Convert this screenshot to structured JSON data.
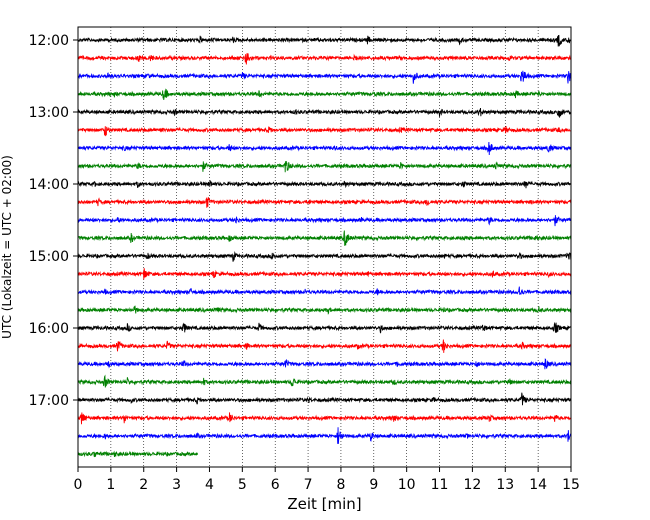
{
  "chart_data": {
    "type": "line",
    "title": "",
    "xlabel": "Zeit  [min]",
    "ylabel": "UTC (Lokalzeit = UTC + 02:00)",
    "xlim": [
      0,
      15
    ],
    "x_ticks": [
      0,
      1,
      2,
      3,
      4,
      5,
      6,
      7,
      8,
      9,
      10,
      11,
      12,
      13,
      14,
      15
    ],
    "y_tick_labels": [
      "12:00",
      "13:00",
      "14:00",
      "15:00",
      "16:00",
      "17:00"
    ],
    "grid": "vertical dotted",
    "trace_interval_min": 15,
    "trace_colors": [
      "#000000",
      "#ff0000",
      "#0000ff",
      "#008000"
    ],
    "traces": [
      {
        "start": "12:00",
        "end_min": 15,
        "color": "#000000",
        "events": [
          [
            3.7,
            5
          ],
          [
            4.7,
            4
          ],
          [
            8.8,
            5
          ],
          [
            11.6,
            5
          ],
          [
            14.6,
            9
          ],
          [
            14.9,
            6
          ]
        ]
      },
      {
        "start": "12:15",
        "end_min": 15,
        "color": "#ff0000",
        "events": [
          [
            1.8,
            7
          ],
          [
            2.2,
            5
          ],
          [
            5.1,
            11
          ],
          [
            8.4,
            5
          ],
          [
            13.1,
            4
          ],
          [
            14.9,
            5
          ]
        ]
      },
      {
        "start": "12:30",
        "end_min": 15,
        "color": "#0000ff",
        "events": [
          [
            0.9,
            5
          ],
          [
            2.1,
            4
          ],
          [
            5.0,
            5
          ],
          [
            10.2,
            8
          ],
          [
            13.5,
            11
          ],
          [
            14.9,
            9
          ]
        ]
      },
      {
        "start": "12:45",
        "end_min": 15,
        "color": "#008000",
        "events": [
          [
            1.1,
            4
          ],
          [
            2.6,
            9
          ],
          [
            5.5,
            5
          ],
          [
            9.0,
            4
          ],
          [
            13.3,
            5
          ],
          [
            14.0,
            4
          ]
        ]
      },
      {
        "start": "13:00",
        "end_min": 15,
        "color": "#000000",
        "events": [
          [
            2.9,
            5
          ],
          [
            6.6,
            4
          ],
          [
            11.0,
            5
          ],
          [
            12.2,
            7
          ],
          [
            14.6,
            9
          ]
        ]
      },
      {
        "start": "13:15",
        "end_min": 15,
        "color": "#ff0000",
        "events": [
          [
            0.8,
            9
          ],
          [
            2.5,
            4
          ],
          [
            5.8,
            5
          ],
          [
            9.8,
            4
          ],
          [
            13.0,
            5
          ],
          [
            14.6,
            4
          ]
        ]
      },
      {
        "start": "13:30",
        "end_min": 15,
        "color": "#0000ff",
        "events": [
          [
            1.4,
            4
          ],
          [
            4.6,
            5
          ],
          [
            7.8,
            4
          ],
          [
            12.5,
            8
          ],
          [
            14.3,
            7
          ]
        ]
      },
      {
        "start": "13:45",
        "end_min": 15,
        "color": "#008000",
        "events": [
          [
            1.8,
            5
          ],
          [
            3.8,
            6
          ],
          [
            6.3,
            10
          ],
          [
            9.8,
            5
          ],
          [
            12.7,
            5
          ]
        ]
      },
      {
        "start": "14:00",
        "end_min": 15,
        "color": "#000000",
        "events": [
          [
            0.5,
            4
          ],
          [
            1.8,
            5
          ],
          [
            4.0,
            5
          ],
          [
            8.1,
            4
          ],
          [
            11.7,
            5
          ],
          [
            13.6,
            6
          ]
        ]
      },
      {
        "start": "14:15",
        "end_min": 15,
        "color": "#ff0000",
        "events": [
          [
            0.6,
            5
          ],
          [
            3.9,
            8
          ],
          [
            7.0,
            4
          ],
          [
            10.6,
            6
          ],
          [
            13.8,
            4
          ]
        ]
      },
      {
        "start": "14:30",
        "end_min": 15,
        "color": "#0000ff",
        "events": [
          [
            1.2,
            4
          ],
          [
            4.8,
            5
          ],
          [
            8.6,
            4
          ],
          [
            12.5,
            5
          ],
          [
            14.5,
            7
          ]
        ]
      },
      {
        "start": "14:45",
        "end_min": 15,
        "color": "#008000",
        "events": [
          [
            1.6,
            6
          ],
          [
            4.6,
            5
          ],
          [
            8.1,
            11
          ],
          [
            11.7,
            4
          ],
          [
            13.9,
            5
          ]
        ]
      },
      {
        "start": "15:00",
        "end_min": 15,
        "color": "#000000",
        "events": [
          [
            2.1,
            5
          ],
          [
            4.7,
            7
          ],
          [
            5.9,
            5
          ],
          [
            11.1,
            4
          ],
          [
            13.4,
            5
          ],
          [
            14.9,
            8
          ]
        ]
      },
      {
        "start": "15:15",
        "end_min": 15,
        "color": "#ff0000",
        "events": [
          [
            2.0,
            8
          ],
          [
            4.1,
            6
          ],
          [
            8.8,
            4
          ],
          [
            12.6,
            5
          ],
          [
            14.3,
            4
          ]
        ]
      },
      {
        "start": "15:30",
        "end_min": 15,
        "color": "#0000ff",
        "events": [
          [
            0.8,
            4
          ],
          [
            3.4,
            5
          ],
          [
            6.9,
            4
          ],
          [
            9.1,
            5
          ],
          [
            13.4,
            8
          ]
        ]
      },
      {
        "start": "15:45",
        "end_min": 15,
        "color": "#008000",
        "events": [
          [
            1.7,
            6
          ],
          [
            4.2,
            5
          ],
          [
            7.6,
            4
          ],
          [
            11.1,
            4
          ],
          [
            14.0,
            5
          ]
        ]
      },
      {
        "start": "16:00",
        "end_min": 15,
        "color": "#000000",
        "events": [
          [
            1.5,
            5
          ],
          [
            3.2,
            7
          ],
          [
            5.5,
            6
          ],
          [
            9.2,
            5
          ],
          [
            12.3,
            6
          ],
          [
            14.5,
            8
          ]
        ]
      },
      {
        "start": "16:15",
        "end_min": 15,
        "color": "#ff0000",
        "events": [
          [
            1.2,
            8
          ],
          [
            2.7,
            6
          ],
          [
            5.1,
            5
          ],
          [
            8.5,
            4
          ],
          [
            11.1,
            9
          ],
          [
            13.5,
            5
          ]
        ]
      },
      {
        "start": "16:30",
        "end_min": 15,
        "color": "#0000ff",
        "events": [
          [
            0.9,
            5
          ],
          [
            3.2,
            5
          ],
          [
            6.3,
            6
          ],
          [
            9.7,
            4
          ],
          [
            12.1,
            5
          ],
          [
            14.2,
            8
          ]
        ]
      },
      {
        "start": "16:45",
        "end_min": 15,
        "color": "#008000",
        "events": [
          [
            0.8,
            8
          ],
          [
            1.5,
            5
          ],
          [
            3.8,
            5
          ],
          [
            6.5,
            8
          ],
          [
            9.6,
            4
          ],
          [
            13.1,
            5
          ]
        ]
      },
      {
        "start": "17:00",
        "end_min": 15,
        "color": "#000000",
        "events": [
          [
            1.6,
            4
          ],
          [
            3.6,
            5
          ],
          [
            7.0,
            4
          ],
          [
            10.8,
            4
          ],
          [
            13.5,
            8
          ]
        ]
      },
      {
        "start": "17:15",
        "end_min": 15,
        "color": "#ff0000",
        "events": [
          [
            0.1,
            9
          ],
          [
            1.4,
            6
          ],
          [
            4.6,
            7
          ],
          [
            9.6,
            5
          ],
          [
            12.5,
            5
          ],
          [
            14.5,
            5
          ]
        ]
      },
      {
        "start": "17:30",
        "end_min": 15,
        "color": "#0000ff",
        "events": [
          [
            0.8,
            5
          ],
          [
            3.6,
            4
          ],
          [
            7.9,
            11
          ],
          [
            8.9,
            6
          ],
          [
            11.8,
            4
          ],
          [
            14.9,
            8
          ]
        ]
      },
      {
        "start": "17:45",
        "end_min": 3.65,
        "color": "#008000",
        "events": [
          [
            0.5,
            5
          ],
          [
            1.1,
            4
          ]
        ]
      }
    ]
  }
}
